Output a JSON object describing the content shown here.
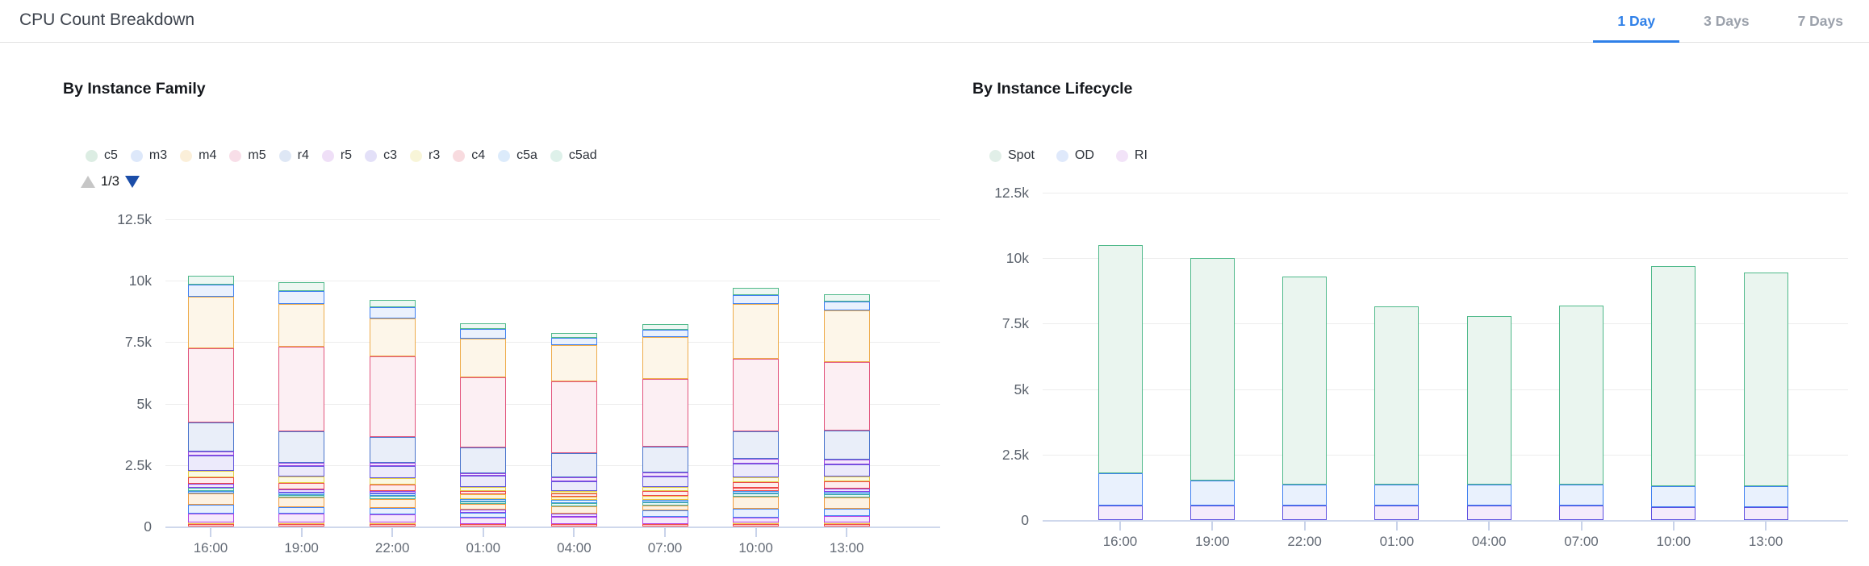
{
  "header": {
    "title": "CPU Count Breakdown",
    "tabs": [
      {
        "label": "1 Day",
        "active": true
      },
      {
        "label": "3 Days",
        "active": false
      },
      {
        "label": "7 Days",
        "active": false
      }
    ]
  },
  "colors": {
    "accent": "#2f80e8",
    "header_divider": "#e3e3e3",
    "tab_inactive": "#9ba1ab",
    "axis_line": "#cfd8ec",
    "gridline": "#ededed",
    "tick": "#c9d3ea",
    "pager_up": "#c6c6c6",
    "pager_down": "#1b4da8"
  },
  "palette": {
    "c5": {
      "border": "#4fb98a",
      "fill": "#edf7f2",
      "dot": "#dcede3"
    },
    "m3": {
      "border": "#3f80f0",
      "fill": "#eaf1fd",
      "dot": "#dde8fa"
    },
    "m4": {
      "border": "#eeac4c",
      "fill": "#fdf6e9",
      "dot": "#fbefd9"
    },
    "m5": {
      "border": "#e2557d",
      "fill": "#fceff3",
      "dot": "#f8dee8"
    },
    "r4": {
      "border": "#4a74cc",
      "fill": "#e9eef9",
      "dot": "#dee7f5"
    },
    "r5": {
      "border": "#9a46e2",
      "fill": "#f3e9fc",
      "dot": "#efdff7"
    },
    "c3": {
      "border": "#6156dd",
      "fill": "#eceafb",
      "dot": "#e3e0f8"
    },
    "r3": {
      "border": "#e2cc45",
      "fill": "#fbf9e3",
      "dot": "#f8f5d8"
    },
    "c4": {
      "border": "#ec4848",
      "fill": "#fdeced",
      "dot": "#f8dbdf"
    },
    "c5a": {
      "border": "#3f8fe8",
      "fill": "#e9f2fd",
      "dot": "#dcebfb"
    },
    "c5ad": {
      "border": "#44b1a4",
      "fill": "#eaf7f4",
      "dot": "#def1ea"
    },
    "extra-red": {
      "border": "#f14a4a",
      "fill": "#fdeaea",
      "dot": "#f8dbdb"
    },
    "extra-yellow": {
      "border": "#eec03f",
      "fill": "#fcf4dc",
      "dot": "#f8eecf"
    },
    "extra-magenta": {
      "border": "#b441e4",
      "fill": "#f6e9fc",
      "dot": "#f0ddf8"
    },
    "extra-blue": {
      "border": "#4285f4",
      "fill": "#eaf1fd",
      "dot": "#dde8fa"
    },
    "extra-orange": {
      "border": "#f09b3e",
      "fill": "#fdf2e2",
      "dot": "#f9e9d2"
    },
    "extra-purple": {
      "border": "#8b40e8",
      "fill": "#f1e7fc",
      "dot": "#e9dcf8"
    },
    "Spot": {
      "border": "#4fb98a",
      "fill": "#eaf5ef",
      "dot": "#e1efe8"
    },
    "OD": {
      "border": "#3f80f0",
      "fill": "#e9f1fd",
      "dot": "#dfe9fb"
    },
    "RI": {
      "border": "#5c50e0",
      "fill": "#f4ebfb",
      "dot": "#f2e3f8"
    }
  },
  "chart_data": [
    {
      "type": "bar",
      "stacked": true,
      "title": "By Instance Family",
      "legend": [
        {
          "label": "c5",
          "palette": "c5"
        },
        {
          "label": "m3",
          "palette": "m3"
        },
        {
          "label": "m4",
          "palette": "m4"
        },
        {
          "label": "m5",
          "palette": "m5"
        },
        {
          "label": "r4",
          "palette": "r4"
        },
        {
          "label": "r5",
          "palette": "r5"
        },
        {
          "label": "c3",
          "palette": "c3"
        },
        {
          "label": "r3",
          "palette": "r3"
        },
        {
          "label": "c4",
          "palette": "c4"
        },
        {
          "label": "c5a",
          "palette": "c5a"
        },
        {
          "label": "c5ad",
          "palette": "c5ad"
        }
      ],
      "legend_pager": {
        "label": "1/3",
        "up_enabled": false,
        "down_enabled": true
      },
      "categories": [
        "16:00",
        "19:00",
        "22:00",
        "01:00",
        "04:00",
        "07:00",
        "10:00",
        "13:00"
      ],
      "ylim": [
        0,
        12500
      ],
      "y_ticks": [
        0,
        2500,
        5000,
        7500,
        10000,
        12500
      ],
      "y_tick_labels": [
        "0",
        "2.5k",
        "5k",
        "7.5k",
        "10k",
        "12.5k"
      ],
      "grid": true,
      "legend_position": "top",
      "bars": [
        {
          "category": "16:00",
          "segments": [
            {
              "series": "extra-red",
              "value": 100
            },
            {
              "series": "extra-yellow",
              "value": 80
            },
            {
              "series": "extra-magenta",
              "value": 350
            },
            {
              "series": "extra-blue",
              "value": 350
            },
            {
              "series": "extra-orange",
              "value": 450
            },
            {
              "series": "c5a",
              "value": 120
            },
            {
              "series": "c5ad",
              "value": 140
            },
            {
              "series": "extra-purple",
              "value": 150
            },
            {
              "series": "c4",
              "value": 260
            },
            {
              "series": "r3",
              "value": 280
            },
            {
              "series": "c3",
              "value": 600
            },
            {
              "series": "r5",
              "value": 160
            },
            {
              "series": "r4",
              "value": 1200
            },
            {
              "series": "m5",
              "value": 3000
            },
            {
              "series": "m4",
              "value": 2100
            },
            {
              "series": "m3",
              "value": 500
            },
            {
              "series": "c5",
              "value": 380
            }
          ]
        },
        {
          "category": "19:00",
          "segments": [
            {
              "series": "extra-red",
              "value": 100
            },
            {
              "series": "extra-yellow",
              "value": 80
            },
            {
              "series": "extra-magenta",
              "value": 330
            },
            {
              "series": "extra-blue",
              "value": 280
            },
            {
              "series": "extra-orange",
              "value": 380
            },
            {
              "series": "c5ad",
              "value": 120
            },
            {
              "series": "c5a",
              "value": 100
            },
            {
              "series": "extra-purple",
              "value": 120
            },
            {
              "series": "c4",
              "value": 250
            },
            {
              "series": "r3",
              "value": 260
            },
            {
              "series": "c3",
              "value": 450
            },
            {
              "series": "r5",
              "value": 120
            },
            {
              "series": "r4",
              "value": 1280
            },
            {
              "series": "m5",
              "value": 3450
            },
            {
              "series": "m4",
              "value": 1750
            },
            {
              "series": "m3",
              "value": 500
            },
            {
              "series": "c5",
              "value": 360
            }
          ]
        },
        {
          "category": "22:00",
          "segments": [
            {
              "series": "extra-red",
              "value": 100
            },
            {
              "series": "extra-yellow",
              "value": 70
            },
            {
              "series": "extra-magenta",
              "value": 320
            },
            {
              "series": "extra-blue",
              "value": 270
            },
            {
              "series": "extra-orange",
              "value": 360
            },
            {
              "series": "c5ad",
              "value": 120
            },
            {
              "series": "c5a",
              "value": 100
            },
            {
              "series": "extra-purple",
              "value": 120
            },
            {
              "series": "c4",
              "value": 240
            },
            {
              "series": "r3",
              "value": 280
            },
            {
              "series": "c3",
              "value": 480
            },
            {
              "series": "r5",
              "value": 120
            },
            {
              "series": "r4",
              "value": 1050
            },
            {
              "series": "m5",
              "value": 3300
            },
            {
              "series": "m4",
              "value": 1550
            },
            {
              "series": "m3",
              "value": 450
            },
            {
              "series": "c5",
              "value": 300
            }
          ]
        },
        {
          "category": "01:00",
          "segments": [
            {
              "series": "extra-red",
              "value": 100
            },
            {
              "series": "extra-magenta",
              "value": 250
            },
            {
              "series": "extra-blue",
              "value": 220
            },
            {
              "series": "extra-purple",
              "value": 120
            },
            {
              "series": "extra-orange",
              "value": 220
            },
            {
              "series": "c5ad",
              "value": 100
            },
            {
              "series": "c5a",
              "value": 100
            },
            {
              "series": "extra-yellow",
              "value": 200
            },
            {
              "series": "c4",
              "value": 150
            },
            {
              "series": "r3",
              "value": 150
            },
            {
              "series": "c3",
              "value": 450
            },
            {
              "series": "r5",
              "value": 120
            },
            {
              "series": "r4",
              "value": 1050
            },
            {
              "series": "m5",
              "value": 2850
            },
            {
              "series": "m4",
              "value": 1550
            },
            {
              "series": "m3",
              "value": 400
            },
            {
              "series": "c5",
              "value": 250
            }
          ]
        },
        {
          "category": "04:00",
          "segments": [
            {
              "series": "extra-red",
              "value": 100
            },
            {
              "series": "extra-magenta",
              "value": 280
            },
            {
              "series": "extra-purple",
              "value": 150
            },
            {
              "series": "extra-orange",
              "value": 300
            },
            {
              "series": "c5ad",
              "value": 120
            },
            {
              "series": "c5a",
              "value": 120
            },
            {
              "series": "extra-yellow",
              "value": 150
            },
            {
              "series": "c4",
              "value": 120
            },
            {
              "series": "r3",
              "value": 100
            },
            {
              "series": "c3",
              "value": 400
            },
            {
              "series": "r5",
              "value": 150
            },
            {
              "series": "r4",
              "value": 1000
            },
            {
              "series": "m5",
              "value": 2900
            },
            {
              "series": "m4",
              "value": 1500
            },
            {
              "series": "m3",
              "value": 300
            },
            {
              "series": "c5",
              "value": 200
            }
          ]
        },
        {
          "category": "07:00",
          "segments": [
            {
              "series": "extra-red",
              "value": 100
            },
            {
              "series": "extra-magenta",
              "value": 300
            },
            {
              "series": "extra-blue",
              "value": 250
            },
            {
              "series": "extra-orange",
              "value": 200
            },
            {
              "series": "c5ad",
              "value": 120
            },
            {
              "series": "c5a",
              "value": 100
            },
            {
              "series": "extra-yellow",
              "value": 180
            },
            {
              "series": "c4",
              "value": 200
            },
            {
              "series": "r3",
              "value": 150
            },
            {
              "series": "c3",
              "value": 450
            },
            {
              "series": "r5",
              "value": 150
            },
            {
              "series": "r4",
              "value": 1050
            },
            {
              "series": "m5",
              "value": 2750
            },
            {
              "series": "m4",
              "value": 1700
            },
            {
              "series": "m3",
              "value": 300
            },
            {
              "series": "c5",
              "value": 220
            }
          ]
        },
        {
          "category": "10:00",
          "segments": [
            {
              "series": "extra-red",
              "value": 100
            },
            {
              "series": "extra-yellow",
              "value": 70
            },
            {
              "series": "extra-magenta",
              "value": 200
            },
            {
              "series": "extra-blue",
              "value": 350
            },
            {
              "series": "extra-orange",
              "value": 500
            },
            {
              "series": "c5ad",
              "value": 120
            },
            {
              "series": "c5a",
              "value": 100
            },
            {
              "series": "extra-red",
              "value": 120
            },
            {
              "series": "c4",
              "value": 250
            },
            {
              "series": "r3",
              "value": 200
            },
            {
              "series": "c3",
              "value": 550
            },
            {
              "series": "r5",
              "value": 200
            },
            {
              "series": "r4",
              "value": 1100
            },
            {
              "series": "m5",
              "value": 2950
            },
            {
              "series": "m4",
              "value": 2250
            },
            {
              "series": "m3",
              "value": 350
            },
            {
              "series": "c5",
              "value": 300
            }
          ]
        },
        {
          "category": "13:00",
          "segments": [
            {
              "series": "extra-red",
              "value": 100
            },
            {
              "series": "extra-yellow",
              "value": 80
            },
            {
              "series": "extra-magenta",
              "value": 250
            },
            {
              "series": "extra-blue",
              "value": 300
            },
            {
              "series": "extra-orange",
              "value": 450
            },
            {
              "series": "c5ad",
              "value": 120
            },
            {
              "series": "c5a",
              "value": 120
            },
            {
              "series": "extra-purple",
              "value": 120
            },
            {
              "series": "c4",
              "value": 300
            },
            {
              "series": "r3",
              "value": 200
            },
            {
              "series": "c3",
              "value": 500
            },
            {
              "series": "r5",
              "value": 200
            },
            {
              "series": "r4",
              "value": 1150
            },
            {
              "series": "m5",
              "value": 2800
            },
            {
              "series": "m4",
              "value": 2100
            },
            {
              "series": "m3",
              "value": 350
            },
            {
              "series": "c5",
              "value": 300
            }
          ]
        }
      ]
    },
    {
      "type": "bar",
      "stacked": true,
      "title": "By Instance Lifecycle",
      "legend": [
        {
          "label": "Spot",
          "palette": "Spot"
        },
        {
          "label": "OD",
          "palette": "OD"
        },
        {
          "label": "RI",
          "palette": "RI"
        }
      ],
      "categories": [
        "16:00",
        "19:00",
        "22:00",
        "01:00",
        "04:00",
        "07:00",
        "10:00",
        "13:00"
      ],
      "ylim": [
        0,
        12500
      ],
      "y_ticks": [
        0,
        2500,
        5000,
        7500,
        10000,
        12500
      ],
      "y_tick_labels": [
        "0",
        "2.5k",
        "5k",
        "7.5k",
        "10k",
        "12.5k"
      ],
      "grid": true,
      "legend_position": "top",
      "series": [
        {
          "name": "RI",
          "values": [
            550,
            550,
            550,
            550,
            550,
            550,
            500,
            500
          ]
        },
        {
          "name": "OD",
          "values": [
            1250,
            950,
            800,
            800,
            800,
            800,
            800,
            800
          ]
        },
        {
          "name": "Spot",
          "values": [
            8700,
            8500,
            7950,
            6800,
            6450,
            6850,
            8400,
            8150
          ]
        }
      ]
    }
  ]
}
